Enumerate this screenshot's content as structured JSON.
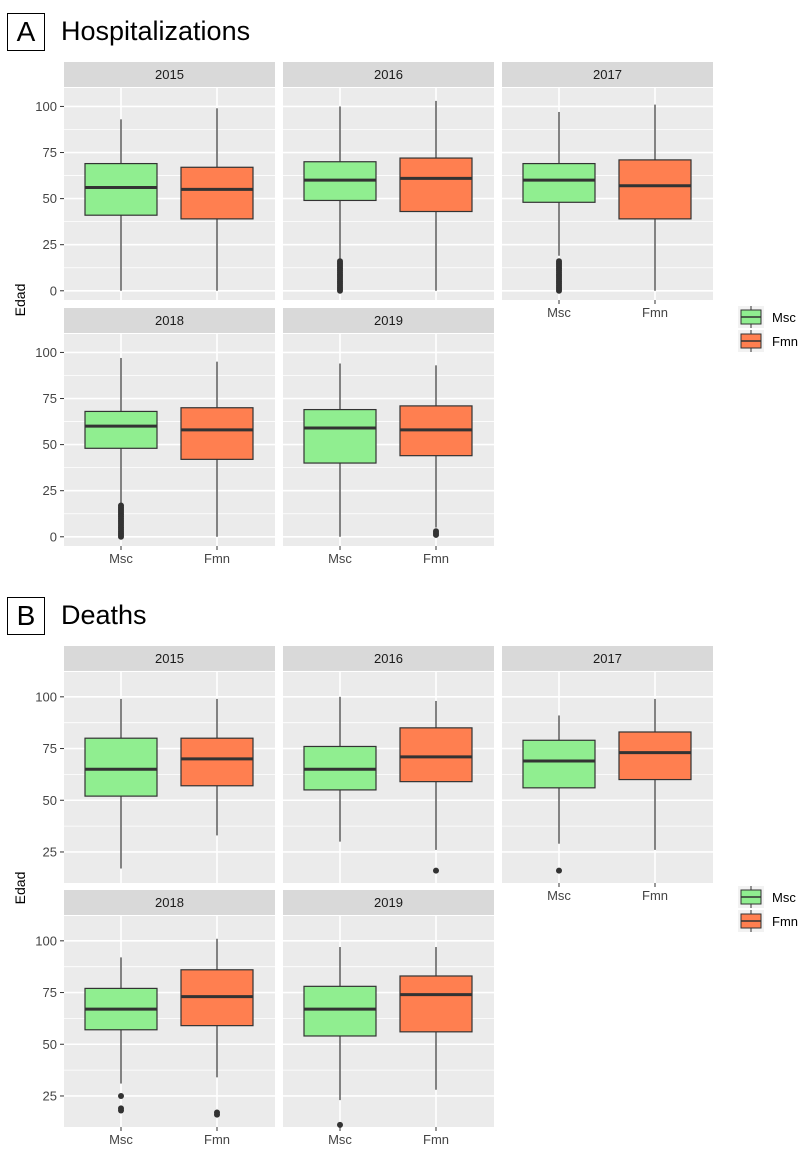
{
  "colors": {
    "male": "#90ee90",
    "female": "#ff7f50",
    "panel_bg": "#ebebeb",
    "strip_bg": "#d9d9d9",
    "grid": "#ffffff",
    "outline": "#333333"
  },
  "chart_data": [
    {
      "type": "boxplot",
      "panel_letter": "A",
      "title": "Hospitalizations",
      "ylabel": "Edad",
      "ylim": [
        -5,
        110
      ],
      "y_ticks": [
        0,
        25,
        50,
        75,
        100
      ],
      "categories": [
        "Msc",
        "Fmn"
      ],
      "legend": {
        "placement": "right",
        "entries": [
          "Msc",
          "Fmn"
        ]
      },
      "facets": [
        {
          "label": "2015",
          "boxes": [
            {
              "category": "Msc",
              "min": 0,
              "q1": 41,
              "median": 56,
              "q3": 69,
              "max": 93,
              "outliers": []
            },
            {
              "category": "Fmn",
              "min": 0,
              "q1": 39,
              "median": 55,
              "q3": 67,
              "max": 99,
              "outliers": []
            }
          ]
        },
        {
          "label": "2016",
          "boxes": [
            {
              "category": "Msc",
              "min": 17,
              "q1": 49,
              "median": 60,
              "q3": 70,
              "max": 100,
              "outliers": [
                0,
                1,
                2,
                3,
                4,
                5,
                6,
                7,
                8,
                9,
                10,
                11,
                12,
                13,
                14,
                15,
                16
              ]
            },
            {
              "category": "Fmn",
              "min": 0,
              "q1": 43,
              "median": 61,
              "q3": 72,
              "max": 103,
              "outliers": []
            }
          ]
        },
        {
          "label": "2017",
          "boxes": [
            {
              "category": "Msc",
              "min": 19,
              "q1": 48,
              "median": 60,
              "q3": 69,
              "max": 97,
              "outliers": [
                0,
                1,
                2,
                3,
                4,
                5,
                6,
                7,
                8,
                9,
                10,
                11,
                12,
                13,
                14,
                15,
                16
              ]
            },
            {
              "category": "Fmn",
              "min": 0,
              "q1": 39,
              "median": 57,
              "q3": 71,
              "max": 101,
              "outliers": []
            }
          ]
        },
        {
          "label": "2018",
          "boxes": [
            {
              "category": "Msc",
              "min": 18,
              "q1": 48,
              "median": 60,
              "q3": 68,
              "max": 97,
              "outliers": [
                0,
                1,
                2,
                3,
                4,
                5,
                6,
                7,
                8,
                9,
                10,
                11,
                12,
                13,
                14,
                15,
                16,
                17
              ]
            },
            {
              "category": "Fmn",
              "min": 0,
              "q1": 42,
              "median": 58,
              "q3": 70,
              "max": 95,
              "outliers": []
            }
          ]
        },
        {
          "label": "2019",
          "boxes": [
            {
              "category": "Msc",
              "min": 0,
              "q1": 40,
              "median": 59,
              "q3": 69,
              "max": 94,
              "outliers": []
            },
            {
              "category": "Fmn",
              "min": 5,
              "q1": 44,
              "median": 58,
              "q3": 71,
              "max": 93,
              "outliers": [
                1,
                2,
                3
              ]
            }
          ]
        }
      ]
    },
    {
      "type": "boxplot",
      "panel_letter": "B",
      "title": "Deaths",
      "ylabel": "Edad",
      "ylim": [
        10,
        112
      ],
      "y_ticks": [
        25,
        50,
        75,
        100
      ],
      "categories": [
        "Msc",
        "Fmn"
      ],
      "legend": {
        "placement": "right",
        "entries": [
          "Msc",
          "Fmn"
        ]
      },
      "facets": [
        {
          "label": "2015",
          "boxes": [
            {
              "category": "Msc",
              "min": 17,
              "q1": 52,
              "median": 65,
              "q3": 80,
              "max": 99,
              "outliers": []
            },
            {
              "category": "Fmn",
              "min": 33,
              "q1": 57,
              "median": 70,
              "q3": 80,
              "max": 99,
              "outliers": []
            }
          ]
        },
        {
          "label": "2016",
          "boxes": [
            {
              "category": "Msc",
              "min": 30,
              "q1": 55,
              "median": 65,
              "q3": 76,
              "max": 100,
              "outliers": []
            },
            {
              "category": "Fmn",
              "min": 26,
              "q1": 59,
              "median": 71,
              "q3": 85,
              "max": 98,
              "outliers": [
                16
              ]
            }
          ]
        },
        {
          "label": "2017",
          "boxes": [
            {
              "category": "Msc",
              "min": 29,
              "q1": 56,
              "median": 69,
              "q3": 79,
              "max": 91,
              "outliers": [
                16
              ]
            },
            {
              "category": "Fmn",
              "min": 26,
              "q1": 60,
              "median": 73,
              "q3": 83,
              "max": 99,
              "outliers": []
            }
          ]
        },
        {
          "label": "2018",
          "boxes": [
            {
              "category": "Msc",
              "min": 31,
              "q1": 57,
              "median": 67,
              "q3": 77,
              "max": 92,
              "outliers": [
                18,
                19,
                25
              ]
            },
            {
              "category": "Fmn",
              "min": 34,
              "q1": 59,
              "median": 73,
              "q3": 86,
              "max": 101,
              "outliers": [
                16,
                17
              ]
            }
          ]
        },
        {
          "label": "2019",
          "boxes": [
            {
              "category": "Msc",
              "min": 23,
              "q1": 54,
              "median": 67,
              "q3": 78,
              "max": 97,
              "outliers": [
                11
              ]
            },
            {
              "category": "Fmn",
              "min": 28,
              "q1": 56,
              "median": 74,
              "q3": 83,
              "max": 97,
              "outliers": []
            }
          ]
        }
      ]
    }
  ]
}
